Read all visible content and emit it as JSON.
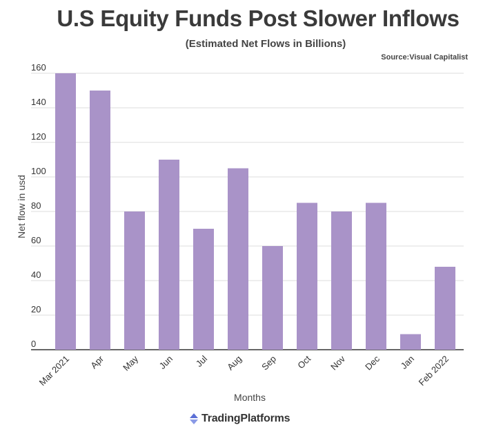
{
  "header": {
    "title": "U.S Equity Funds Post Slower Inflows",
    "subtitle": "(Estimated Net Flows in Billions)",
    "source": "Source:Visual Capitalist"
  },
  "footer": {
    "brand": "TradingPlatforms"
  },
  "colors": {
    "bar": "#a993c8",
    "grid": "#dddddd",
    "axis": "#333333",
    "logo": "#5b6fd6"
  },
  "chart_data": {
    "type": "bar",
    "categories": [
      "Mar 2021",
      "Apr",
      "May",
      "Jun",
      "Jul",
      "Aug",
      "Sep",
      "Oct",
      "Nov",
      "Dec",
      "Jan",
      "Feb 2022"
    ],
    "values": [
      160,
      150,
      80,
      110,
      70,
      105,
      60,
      85,
      80,
      85,
      9,
      48
    ],
    "title": "U.S Equity Funds Post Slower Inflows",
    "subtitle": "(Estimated Net Flows in Billions)",
    "xlabel": "Months",
    "ylabel": "Net flow in usd",
    "ylim": [
      0,
      160
    ],
    "yticks": [
      0,
      20,
      40,
      60,
      80,
      100,
      120,
      140,
      160
    ],
    "grid": true,
    "legend": "none"
  }
}
